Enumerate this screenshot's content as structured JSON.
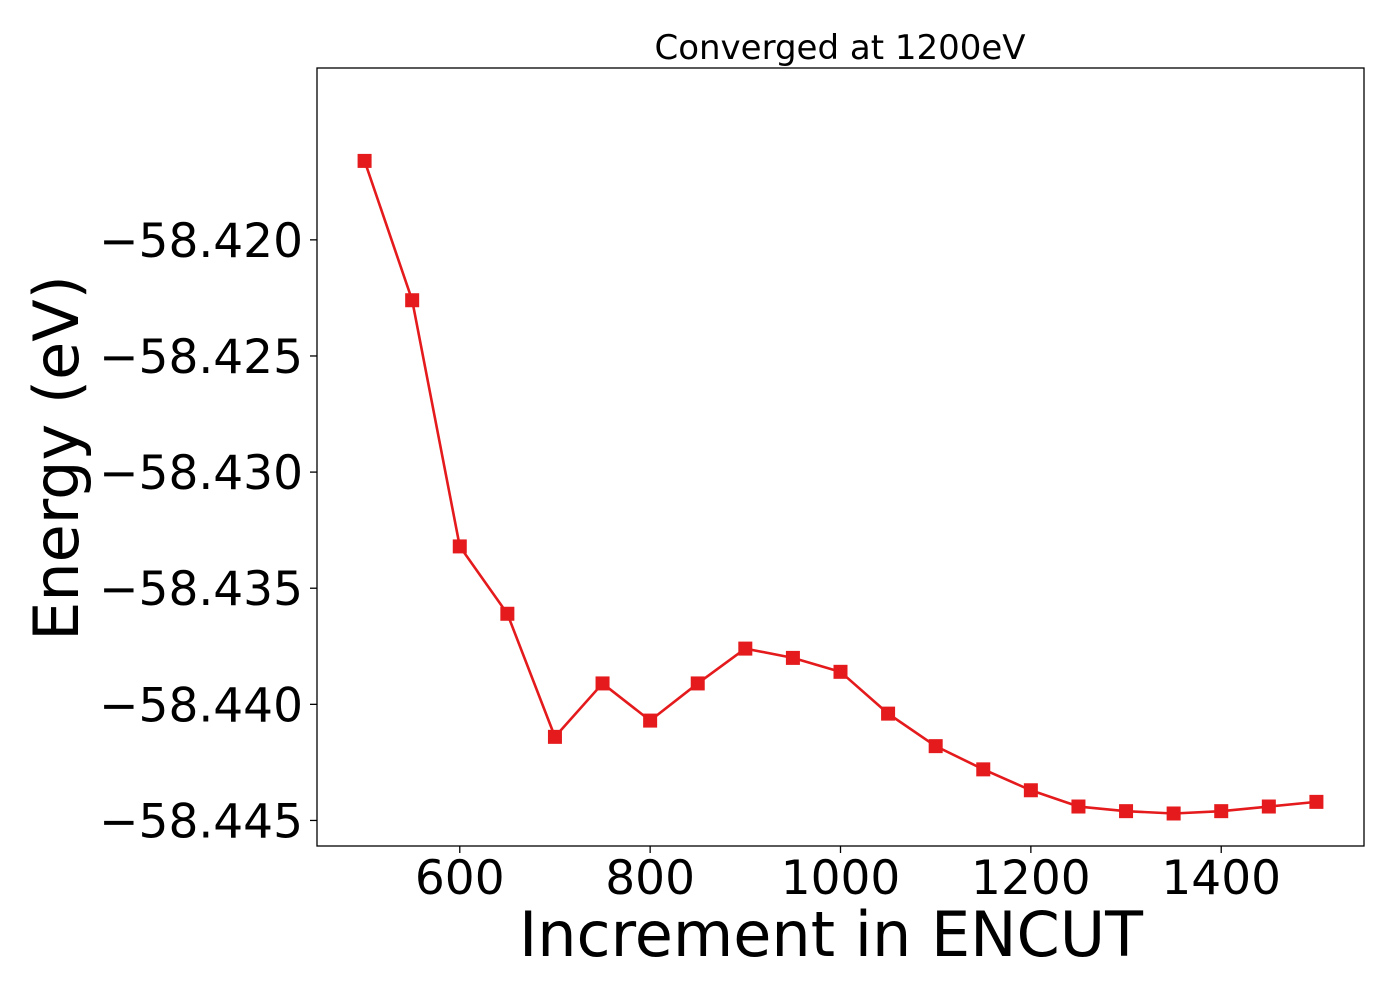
{
  "chart_data": {
    "type": "line",
    "title": "Converged at 1200eV",
    "xlabel": "Increment in ENCUT",
    "ylabel": "Energy (eV)",
    "xlim": [
      450,
      1550
    ],
    "ylim": [
      -58.4461,
      -58.4126
    ],
    "xticks": [
      600,
      800,
      1000,
      1200,
      1400
    ],
    "xtick_labels": [
      "600",
      "800",
      "1000",
      "1200",
      "1400"
    ],
    "yticks": [
      -58.42,
      -58.425,
      -58.43,
      -58.435,
      -58.44,
      -58.445
    ],
    "ytick_labels": [
      "−58.420",
      "−58.425",
      "−58.430",
      "−58.435",
      "−58.440",
      "−58.445"
    ],
    "grid": false,
    "series": [
      {
        "color": "#e41a1c",
        "marker": "square",
        "x": [
          500,
          550,
          600,
          650,
          700,
          750,
          800,
          850,
          900,
          950,
          1000,
          1050,
          1100,
          1150,
          1200,
          1250,
          1300,
          1350,
          1400,
          1450,
          1500
        ],
        "y": [
          -58.4166,
          -58.4226,
          -58.4332,
          -58.4361,
          -58.4414,
          -58.4391,
          -58.4407,
          -58.4391,
          -58.4376,
          -58.438,
          -58.4386,
          -58.4404,
          -58.4418,
          -58.4428,
          -58.4437,
          -58.4444,
          -58.4446,
          -58.4447,
          -58.4446,
          -58.4444,
          -58.4442
        ]
      }
    ]
  }
}
